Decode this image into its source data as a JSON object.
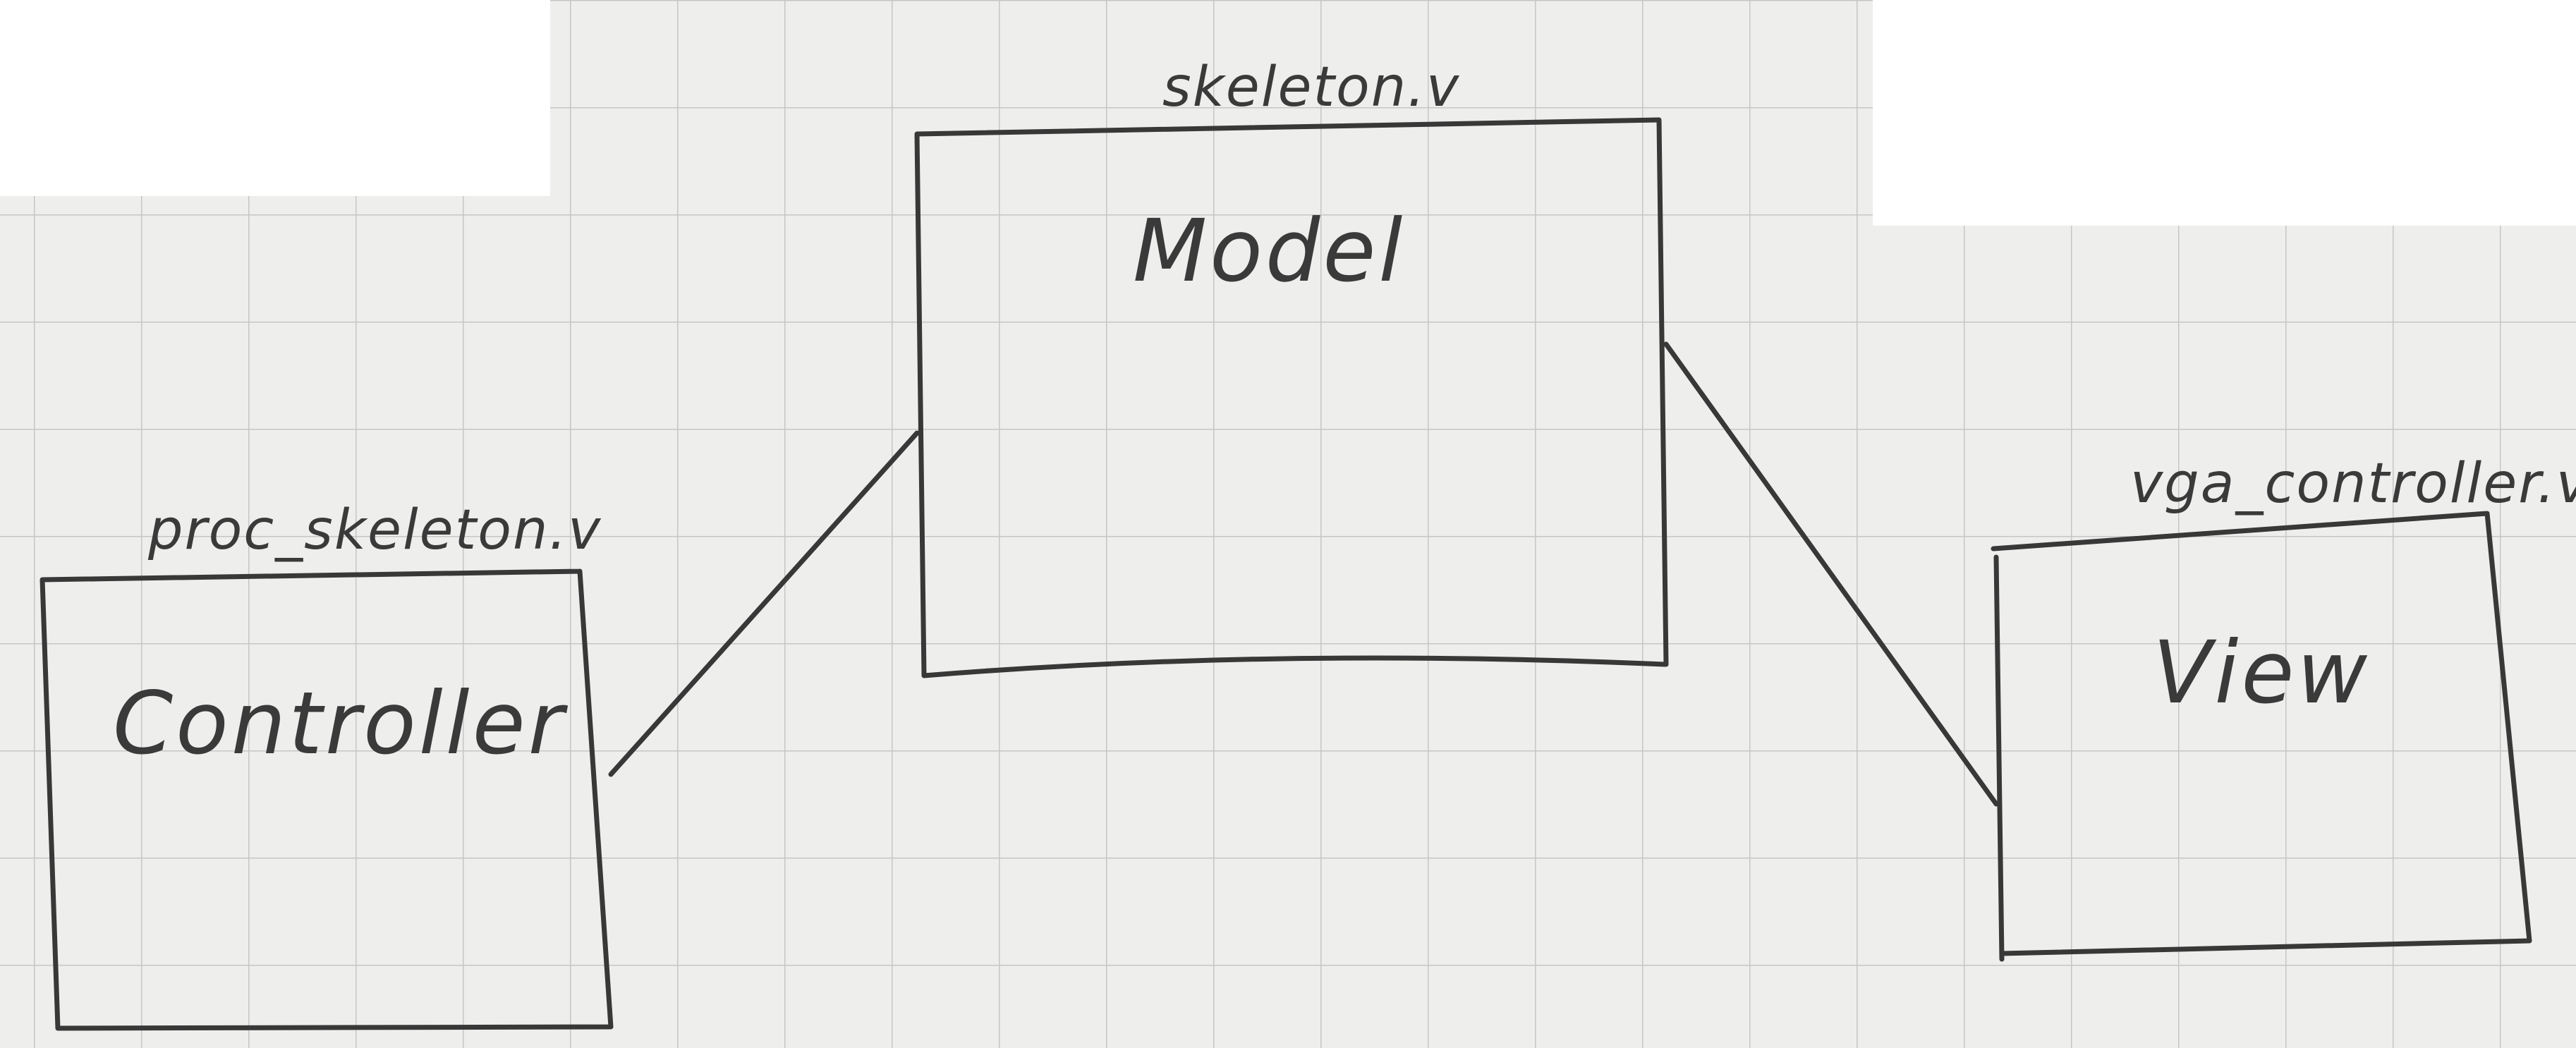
{
  "colors": {
    "paper": "#eeeeec",
    "grid": "#c9c9c9",
    "ink": "#3a3a3a",
    "blank": "#ffffff"
  },
  "modules": [
    {
      "id": "controller",
      "file": "proc_skeleton.v",
      "role": "Controller"
    },
    {
      "id": "model",
      "file": "skeleton.v",
      "role": "Model"
    },
    {
      "id": "view",
      "file": "vga_controller.v",
      "role": "View"
    }
  ],
  "connections": [
    {
      "from": "controller",
      "to": "model"
    },
    {
      "from": "model",
      "to": "view"
    }
  ]
}
